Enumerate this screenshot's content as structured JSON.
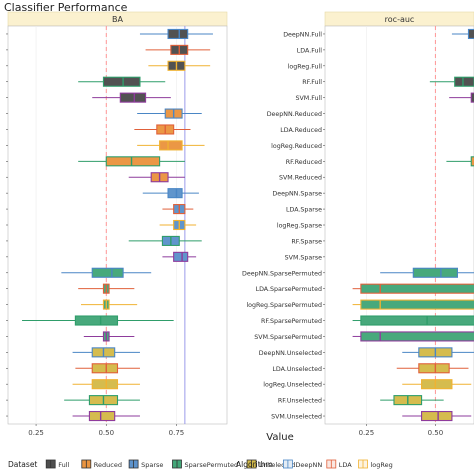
{
  "title": "Classifier Performance",
  "xlabel": "Value",
  "chart_data": {
    "type": "boxplot",
    "title": "Classifier Performance",
    "xlabel": "Value",
    "colors": {
      "Full": "#3a3a3a",
      "Reduced": "#e8892c",
      "Sparse": "#4a86c5",
      "SparsePermuted": "#2f9d6a",
      "Unselected": "#cfb336",
      "DeepNN": "#4a86c5",
      "LDA": "#e0603a",
      "logReg": "#f0b232",
      "RF": "#2f9d6a",
      "SVM": "#8e3b9c"
    },
    "rows": [
      "DeepNN.Full",
      "LDA.Full",
      "logReg.Full",
      "RF.Full",
      "SVM.Full",
      "DeepNN.Reduced",
      "LDA.Reduced",
      "logReg.Reduced",
      "RF.Reduced",
      "SVM.Reduced",
      "DeepNN.Sparse",
      "LDA.Sparse",
      "logReg.Sparse",
      "RF.Sparse",
      "SVM.Sparse",
      "DeepNN.SparsePermuted",
      "LDA.SparsePermuted",
      "logReg.SparsePermuted",
      "RF.SparsePermuted",
      "SVM.SparsePermuted",
      "DeepNN.Unselected",
      "LDA.Unselected",
      "logReg.Unselected",
      "RF.Unselected",
      "SVM.Unselected"
    ],
    "panels": [
      {
        "strip": "BA",
        "xlim": [
          0.15,
          0.93
        ],
        "xticks": [
          0.25,
          0.5,
          0.75
        ],
        "xtick_labels": [
          "0.25",
          "0.50",
          "0.75"
        ],
        "ref_lines": [
          0.5,
          0.78
        ],
        "boxes": [
          {
            "row": "DeepNN.Full",
            "dataset": "Full",
            "algorithm": "DeepNN",
            "wlo": 0.62,
            "q1": 0.72,
            "med": 0.76,
            "q3": 0.79,
            "whi": 0.88
          },
          {
            "row": "LDA.Full",
            "dataset": "Full",
            "algorithm": "LDA",
            "wlo": 0.64,
            "q1": 0.73,
            "med": 0.76,
            "q3": 0.79,
            "whi": 0.87
          },
          {
            "row": "logReg.Full",
            "dataset": "Full",
            "algorithm": "logReg",
            "wlo": 0.65,
            "q1": 0.72,
            "med": 0.75,
            "q3": 0.78,
            "whi": 0.87
          },
          {
            "row": "RF.Full",
            "dataset": "Full",
            "algorithm": "RF",
            "wlo": 0.4,
            "q1": 0.49,
            "med": 0.56,
            "q3": 0.62,
            "whi": 0.71
          },
          {
            "row": "SVM.Full",
            "dataset": "Full",
            "algorithm": "SVM",
            "wlo": 0.45,
            "q1": 0.55,
            "med": 0.6,
            "q3": 0.64,
            "whi": 0.73
          },
          {
            "row": "DeepNN.Reduced",
            "dataset": "Reduced",
            "algorithm": "DeepNN",
            "wlo": 0.61,
            "q1": 0.71,
            "med": 0.74,
            "q3": 0.77,
            "whi": 0.84
          },
          {
            "row": "LDA.Reduced",
            "dataset": "Reduced",
            "algorithm": "LDA",
            "wlo": 0.6,
            "q1": 0.68,
            "med": 0.71,
            "q3": 0.74,
            "whi": 0.8
          },
          {
            "row": "logReg.Reduced",
            "dataset": "Reduced",
            "algorithm": "logReg",
            "wlo": 0.61,
            "q1": 0.69,
            "med": 0.72,
            "q3": 0.77,
            "whi": 0.85
          },
          {
            "row": "RF.Reduced",
            "dataset": "Reduced",
            "algorithm": "RF",
            "wlo": 0.4,
            "q1": 0.5,
            "med": 0.59,
            "q3": 0.69,
            "whi": 0.78
          },
          {
            "row": "SVM.Reduced",
            "dataset": "Reduced",
            "algorithm": "SVM",
            "wlo": 0.58,
            "q1": 0.66,
            "med": 0.69,
            "q3": 0.72,
            "whi": 0.78
          },
          {
            "row": "DeepNN.Sparse",
            "dataset": "Sparse",
            "algorithm": "DeepNN",
            "wlo": 0.63,
            "q1": 0.72,
            "med": 0.75,
            "q3": 0.77,
            "whi": 0.83
          },
          {
            "row": "LDA.Sparse",
            "dataset": "Sparse",
            "algorithm": "LDA",
            "wlo": 0.7,
            "q1": 0.74,
            "med": 0.76,
            "q3": 0.78,
            "whi": 0.81
          },
          {
            "row": "logReg.Sparse",
            "dataset": "Sparse",
            "algorithm": "logReg",
            "wlo": 0.69,
            "q1": 0.74,
            "med": 0.76,
            "q3": 0.78,
            "whi": 0.82
          },
          {
            "row": "RF.Sparse",
            "dataset": "Sparse",
            "algorithm": "RF",
            "wlo": 0.58,
            "q1": 0.7,
            "med": 0.73,
            "q3": 0.76,
            "whi": 0.84
          },
          {
            "row": "SVM.Sparse",
            "dataset": "Sparse",
            "algorithm": "SVM",
            "wlo": 0.7,
            "q1": 0.74,
            "med": 0.77,
            "q3": 0.79,
            "whi": 0.82
          },
          {
            "row": "DeepNN.SparsePermuted",
            "dataset": "SparsePermuted",
            "algorithm": "DeepNN",
            "wlo": 0.34,
            "q1": 0.45,
            "med": 0.52,
            "q3": 0.56,
            "whi": 0.66
          },
          {
            "row": "LDA.SparsePermuted",
            "dataset": "SparsePermuted",
            "algorithm": "LDA",
            "wlo": 0.4,
            "q1": 0.49,
            "med": 0.5,
            "q3": 0.51,
            "whi": 0.6
          },
          {
            "row": "logReg.SparsePermuted",
            "dataset": "SparsePermuted",
            "algorithm": "logReg",
            "wlo": 0.41,
            "q1": 0.49,
            "med": 0.5,
            "q3": 0.51,
            "whi": 0.61
          },
          {
            "row": "RF.SparsePermuted",
            "dataset": "SparsePermuted",
            "algorithm": "RF",
            "wlo": 0.2,
            "q1": 0.39,
            "med": 0.48,
            "q3": 0.54,
            "whi": 0.74
          },
          {
            "row": "SVM.SparsePermuted",
            "dataset": "SparsePermuted",
            "algorithm": "SVM",
            "wlo": 0.42,
            "q1": 0.49,
            "med": 0.5,
            "q3": 0.51,
            "whi": 0.6
          },
          {
            "row": "DeepNN.Unselected",
            "dataset": "Unselected",
            "algorithm": "DeepNN",
            "wlo": 0.38,
            "q1": 0.45,
            "med": 0.49,
            "q3": 0.53,
            "whi": 0.62
          },
          {
            "row": "LDA.Unselected",
            "dataset": "Unselected",
            "algorithm": "LDA",
            "wlo": 0.39,
            "q1": 0.45,
            "med": 0.5,
            "q3": 0.54,
            "whi": 0.62
          },
          {
            "row": "logReg.Unselected",
            "dataset": "Unselected",
            "algorithm": "logReg",
            "wlo": 0.38,
            "q1": 0.45,
            "med": 0.5,
            "q3": 0.54,
            "whi": 0.62
          },
          {
            "row": "RF.Unselected",
            "dataset": "Unselected",
            "algorithm": "RF",
            "wlo": 0.35,
            "q1": 0.44,
            "med": 0.49,
            "q3": 0.54,
            "whi": 0.62
          },
          {
            "row": "SVM.Unselected",
            "dataset": "Unselected",
            "algorithm": "SVM",
            "wlo": 0.38,
            "q1": 0.44,
            "med": 0.48,
            "q3": 0.53,
            "whi": 0.62
          }
        ]
      },
      {
        "strip": "roc-auc",
        "xlim": [
          0.1,
          0.64
        ],
        "xticks": [
          0.25,
          0.5
        ],
        "xtick_labels": [
          "0.25",
          "0.50"
        ],
        "ref_lines": [
          0.5
        ],
        "boxes": [
          {
            "row": "DeepNN.Full",
            "dataset": "Full",
            "algorithm": "DeepNN",
            "wlo": 0.56,
            "q1": 0.62,
            "med": 0.66,
            "q3": 0.7,
            "whi": 0.76
          },
          {
            "row": "RF.Full",
            "dataset": "Full",
            "algorithm": "RF",
            "wlo": 0.48,
            "q1": 0.57,
            "med": 0.6,
            "q3": 0.64,
            "whi": 0.72
          },
          {
            "row": "SVM.Full",
            "dataset": "Full",
            "algorithm": "SVM",
            "wlo": 0.55,
            "q1": 0.63,
            "med": 0.67,
            "q3": 0.71,
            "whi": 0.77
          },
          {
            "row": "RF.Reduced",
            "dataset": "Reduced",
            "algorithm": "RF",
            "wlo": 0.54,
            "q1": 0.63,
            "med": 0.67,
            "q3": 0.7,
            "whi": 0.76
          },
          {
            "row": "DeepNN.SparsePermuted",
            "dataset": "SparsePermuted",
            "algorithm": "DeepNN",
            "wlo": 0.3,
            "q1": 0.42,
            "med": 0.52,
            "q3": 0.58,
            "whi": 0.66
          },
          {
            "row": "LDA.SparsePermuted",
            "dataset": "SparsePermuted",
            "algorithm": "LDA",
            "wlo": 0.2,
            "q1": 0.23,
            "med": 0.3,
            "q3": 0.68,
            "whi": 0.7
          },
          {
            "row": "logReg.SparsePermuted",
            "dataset": "SparsePermuted",
            "algorithm": "logReg",
            "wlo": 0.2,
            "q1": 0.23,
            "med": 0.3,
            "q3": 0.68,
            "whi": 0.7
          },
          {
            "row": "RF.SparsePermuted",
            "dataset": "SparsePermuted",
            "algorithm": "RF",
            "wlo": 0.2,
            "q1": 0.23,
            "med": 0.47,
            "q3": 0.68,
            "whi": 0.7
          },
          {
            "row": "SVM.SparsePermuted",
            "dataset": "SparsePermuted",
            "algorithm": "SVM",
            "wlo": 0.2,
            "q1": 0.23,
            "med": 0.3,
            "q3": 0.68,
            "whi": 0.7
          },
          {
            "row": "DeepNN.Unselected",
            "dataset": "Unselected",
            "algorithm": "DeepNN",
            "wlo": 0.38,
            "q1": 0.44,
            "med": 0.5,
            "q3": 0.56,
            "whi": 0.64
          },
          {
            "row": "LDA.Unselected",
            "dataset": "Unselected",
            "algorithm": "LDA",
            "wlo": 0.36,
            "q1": 0.44,
            "med": 0.5,
            "q3": 0.55,
            "whi": 0.62
          },
          {
            "row": "logReg.Unselected",
            "dataset": "Unselected",
            "algorithm": "logReg",
            "wlo": 0.38,
            "q1": 0.45,
            "med": 0.5,
            "q3": 0.56,
            "whi": 0.63
          },
          {
            "row": "RF.Unselected",
            "dataset": "Unselected",
            "algorithm": "RF",
            "wlo": 0.3,
            "q1": 0.35,
            "med": 0.4,
            "q3": 0.45,
            "whi": 0.53
          },
          {
            "row": "SVM.Unselected",
            "dataset": "Unselected",
            "algorithm": "SVM",
            "wlo": 0.38,
            "q1": 0.45,
            "med": 0.51,
            "q3": 0.56,
            "whi": 0.63
          }
        ]
      }
    ],
    "legends": [
      {
        "title": "Dataset",
        "entries": [
          "Full",
          "Reduced",
          "Sparse",
          "SparsePermuted",
          "Unselected"
        ]
      },
      {
        "title": "Algorithm",
        "entries": [
          "DeepNN",
          "LDA",
          "logReg"
        ]
      }
    ]
  }
}
